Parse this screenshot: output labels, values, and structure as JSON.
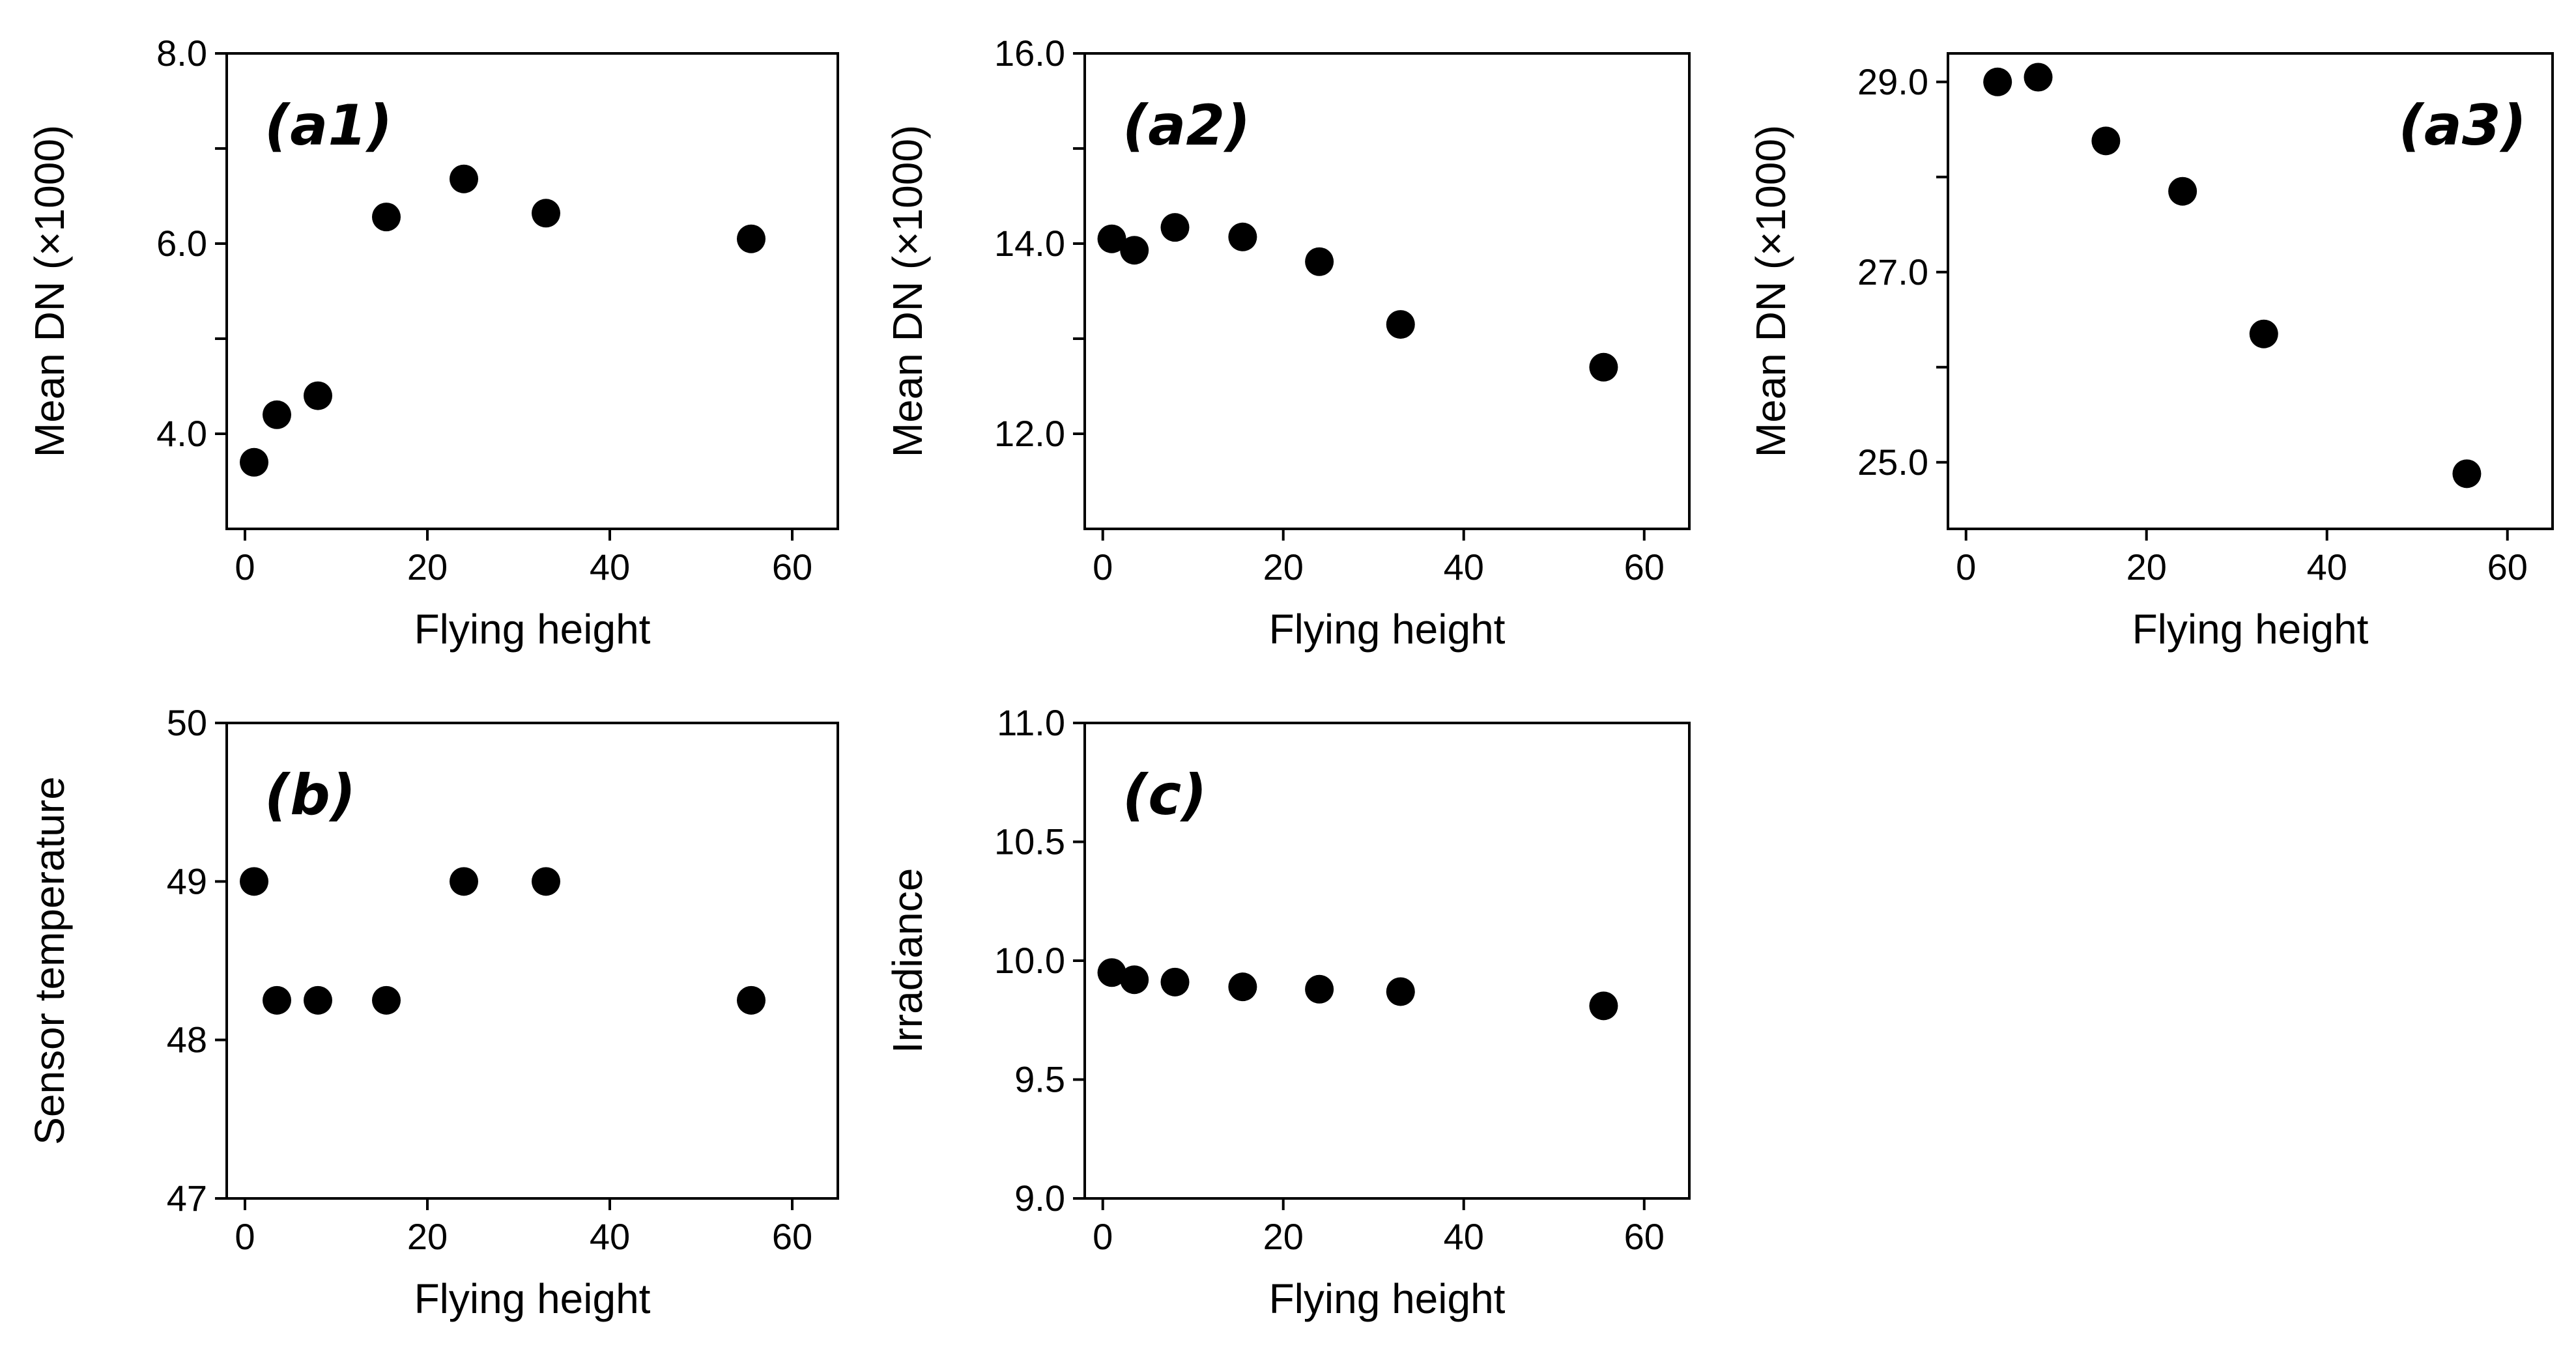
{
  "chart_data": [
    {
      "type": "scatter",
      "panel_label": "(a1)",
      "label_position": "top-left",
      "xlabel": "Flying height",
      "ylabel": "Mean DN (×1000)",
      "xlim": [
        -2,
        65
      ],
      "ylim": [
        3.0,
        8.0
      ],
      "xticks": [
        0,
        20,
        40,
        60
      ],
      "xtick_labels": [
        "0",
        "20",
        "40",
        "60"
      ],
      "yticks": [
        4.0,
        6.0,
        8.0
      ],
      "ytick_labels": [
        "4.0",
        "6.0",
        "8.0"
      ],
      "yminor": [
        5.0,
        7.0
      ],
      "x": [
        1,
        3.5,
        8,
        15.5,
        24,
        33,
        55.5
      ],
      "y": [
        3.7,
        4.2,
        4.4,
        6.28,
        6.68,
        6.32,
        6.05
      ]
    },
    {
      "type": "scatter",
      "panel_label": "(a2)",
      "label_position": "top-left",
      "xlabel": "Flying height",
      "ylabel": "Mean DN (×1000)",
      "xlim": [
        -2,
        65
      ],
      "ylim": [
        11.0,
        16.0
      ],
      "xticks": [
        0,
        20,
        40,
        60
      ],
      "xtick_labels": [
        "0",
        "20",
        "40",
        "60"
      ],
      "yticks": [
        12.0,
        14.0,
        16.0
      ],
      "ytick_labels": [
        "12.0",
        "14.0",
        "16.0"
      ],
      "yminor": [
        13.0,
        15.0
      ],
      "x": [
        1,
        3.5,
        8,
        15.5,
        24,
        33,
        55.5
      ],
      "y": [
        14.05,
        13.93,
        14.17,
        14.07,
        13.81,
        13.15,
        12.7
      ]
    },
    {
      "type": "scatter",
      "panel_label": "(a3)",
      "label_position": "top-right",
      "xlabel": "Flying height",
      "ylabel": "Mean DN (×1000)",
      "xlim": [
        -2,
        65
      ],
      "ylim": [
        24.3,
        29.3
      ],
      "xticks": [
        0,
        20,
        40,
        60
      ],
      "xtick_labels": [
        "0",
        "20",
        "40",
        "60"
      ],
      "yticks": [
        25.0,
        27.0,
        29.0
      ],
      "ytick_labels": [
        "25.0",
        "27.0",
        "29.0"
      ],
      "yminor": [
        26.0,
        28.0
      ],
      "x": [
        3.5,
        8,
        15.5,
        24,
        33,
        55.5
      ],
      "y": [
        29.0,
        29.05,
        28.38,
        27.85,
        26.35,
        24.88
      ]
    },
    {
      "type": "scatter",
      "panel_label": "(b)",
      "label_position": "top-left",
      "xlabel": "Flying height",
      "ylabel": "Sensor temperature",
      "xlim": [
        -2,
        65
      ],
      "ylim": [
        47,
        50
      ],
      "xticks": [
        0,
        20,
        40,
        60
      ],
      "xtick_labels": [
        "0",
        "20",
        "40",
        "60"
      ],
      "yticks": [
        47,
        48,
        49,
        50
      ],
      "ytick_labels": [
        "47",
        "48",
        "49",
        "50"
      ],
      "yminor": [],
      "x": [
        1,
        3.5,
        8,
        15.5,
        24,
        33,
        55.5
      ],
      "y": [
        49,
        48.25,
        48.25,
        48.25,
        49,
        49,
        48.25
      ]
    },
    {
      "type": "scatter",
      "panel_label": "(c)",
      "label_position": "top-left",
      "xlabel": "Flying height",
      "ylabel": "Irradiance",
      "xlim": [
        -2,
        65
      ],
      "ylim": [
        9.0,
        11.0
      ],
      "xticks": [
        0,
        20,
        40,
        60
      ],
      "xtick_labels": [
        "0",
        "20",
        "40",
        "60"
      ],
      "yticks": [
        9.0,
        9.5,
        10.0,
        10.5,
        11.0
      ],
      "ytick_labels": [
        "9.0",
        "9.5",
        "10.0",
        "10.5",
        "11.0"
      ],
      "yminor": [],
      "x": [
        1,
        3.5,
        8,
        15.5,
        24,
        33,
        55.5
      ],
      "y": [
        9.95,
        9.92,
        9.91,
        9.89,
        9.88,
        9.87,
        9.81
      ]
    }
  ],
  "colors": {
    "marker": "#000000",
    "axis": "#000000",
    "background": "#ffffff"
  }
}
